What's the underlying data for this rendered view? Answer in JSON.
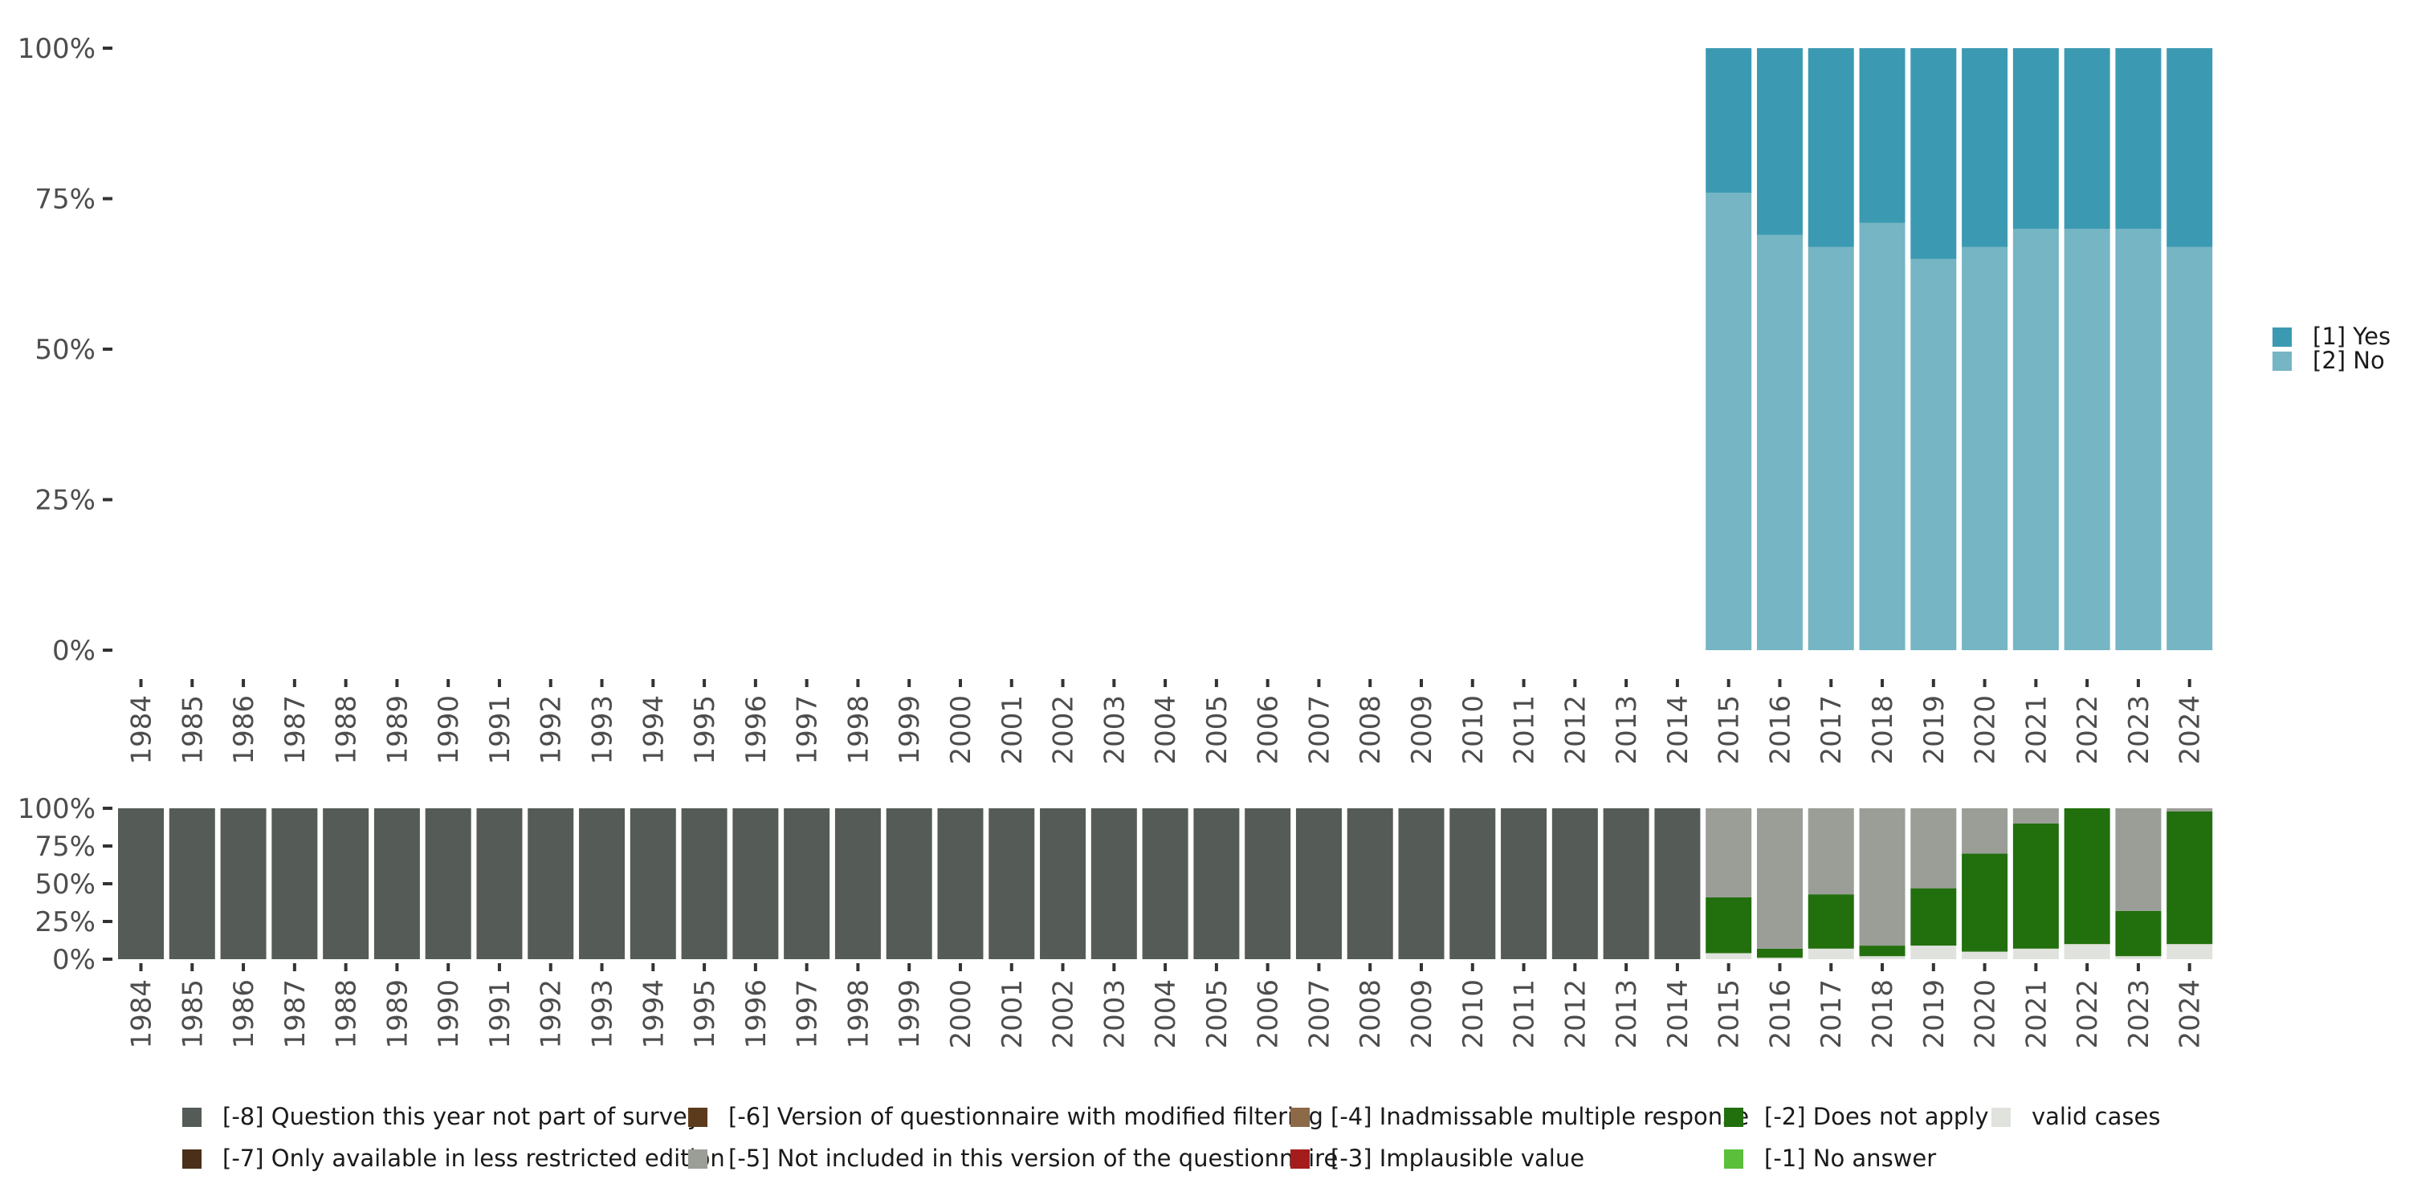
{
  "chart_data": [
    {
      "type": "bar",
      "stacked": true,
      "percent": true,
      "categories": [
        "1984",
        "1985",
        "1986",
        "1987",
        "1988",
        "1989",
        "1990",
        "1991",
        "1992",
        "1993",
        "1994",
        "1995",
        "1996",
        "1997",
        "1998",
        "1999",
        "2000",
        "2001",
        "2002",
        "2003",
        "2004",
        "2005",
        "2006",
        "2007",
        "2008",
        "2009",
        "2010",
        "2011",
        "2012",
        "2013",
        "2014",
        "2015",
        "2016",
        "2017",
        "2018",
        "2019",
        "2020",
        "2021",
        "2022",
        "2023",
        "2024"
      ],
      "y_ticks": [
        "0%",
        "25%",
        "50%",
        "75%",
        "100%"
      ],
      "ylim": [
        0,
        100
      ],
      "legend_position": "right",
      "series": [
        {
          "name": "[2] No",
          "color": "#76b5c3",
          "values": [
            null,
            null,
            null,
            null,
            null,
            null,
            null,
            null,
            null,
            null,
            null,
            null,
            null,
            null,
            null,
            null,
            null,
            null,
            null,
            null,
            null,
            null,
            null,
            null,
            null,
            null,
            null,
            null,
            null,
            null,
            null,
            76,
            69,
            67,
            71,
            65,
            67,
            70,
            70,
            70,
            67
          ]
        },
        {
          "name": "[1] Yes",
          "color": "#3b9ab2",
          "values": [
            null,
            null,
            null,
            null,
            null,
            null,
            null,
            null,
            null,
            null,
            null,
            null,
            null,
            null,
            null,
            null,
            null,
            null,
            null,
            null,
            null,
            null,
            null,
            null,
            null,
            null,
            null,
            null,
            null,
            null,
            null,
            24,
            31,
            33,
            29,
            35,
            33,
            30,
            30,
            30,
            33
          ]
        }
      ]
    },
    {
      "type": "bar",
      "stacked": true,
      "percent": true,
      "categories": [
        "1984",
        "1985",
        "1986",
        "1987",
        "1988",
        "1989",
        "1990",
        "1991",
        "1992",
        "1993",
        "1994",
        "1995",
        "1996",
        "1997",
        "1998",
        "1999",
        "2000",
        "2001",
        "2002",
        "2003",
        "2004",
        "2005",
        "2006",
        "2007",
        "2008",
        "2009",
        "2010",
        "2011",
        "2012",
        "2013",
        "2014",
        "2015",
        "2016",
        "2017",
        "2018",
        "2019",
        "2020",
        "2021",
        "2022",
        "2023",
        "2024"
      ],
      "y_ticks": [
        "0%",
        "25%",
        "50%",
        "75%",
        "100%"
      ],
      "ylim": [
        0,
        100
      ],
      "legend_position": "bottom",
      "series": [
        {
          "name": "valid cases",
          "color": "#e0e2dd",
          "values": [
            0,
            0,
            0,
            0,
            0,
            0,
            0,
            0,
            0,
            0,
            0,
            0,
            0,
            0,
            0,
            0,
            0,
            0,
            0,
            0,
            0,
            0,
            0,
            0,
            0,
            0,
            0,
            0,
            0,
            0,
            0,
            4,
            1,
            7,
            2,
            9,
            5,
            7,
            10,
            2,
            10
          ]
        },
        {
          "name": "[-1] No answer",
          "color": "#5bbf3b",
          "values": [
            0,
            0,
            0,
            0,
            0,
            0,
            0,
            0,
            0,
            0,
            0,
            0,
            0,
            0,
            0,
            0,
            0,
            0,
            0,
            0,
            0,
            0,
            0,
            0,
            0,
            0,
            0,
            0,
            0,
            0,
            0,
            0,
            0,
            0,
            0,
            0,
            0,
            0,
            0,
            0,
            0
          ]
        },
        {
          "name": "[-2] Does not apply",
          "color": "#226f0e",
          "values": [
            0,
            0,
            0,
            0,
            0,
            0,
            0,
            0,
            0,
            0,
            0,
            0,
            0,
            0,
            0,
            0,
            0,
            0,
            0,
            0,
            0,
            0,
            0,
            0,
            0,
            0,
            0,
            0,
            0,
            0,
            0,
            37,
            6,
            36,
            7,
            38,
            65,
            83,
            90,
            30,
            88
          ]
        },
        {
          "name": "[-3] Implausible value",
          "color": "#a51c1c",
          "values": [
            0,
            0,
            0,
            0,
            0,
            0,
            0,
            0,
            0,
            0,
            0,
            0,
            0,
            0,
            0,
            0,
            0,
            0,
            0,
            0,
            0,
            0,
            0,
            0,
            0,
            0,
            0,
            0,
            0,
            0,
            0,
            0,
            0,
            0,
            0,
            0,
            0,
            0,
            0,
            0,
            0
          ]
        },
        {
          "name": "[-4] Inadmissable multiple response",
          "color": "#8c6a48",
          "values": [
            0,
            0,
            0,
            0,
            0,
            0,
            0,
            0,
            0,
            0,
            0,
            0,
            0,
            0,
            0,
            0,
            0,
            0,
            0,
            0,
            0,
            0,
            0,
            0,
            0,
            0,
            0,
            0,
            0,
            0,
            0,
            0,
            0,
            0,
            0,
            0,
            0,
            0,
            0,
            0,
            0
          ]
        },
        {
          "name": "[-5] Not included in this version of the questionnaire",
          "color": "#9b9d97",
          "values": [
            0,
            0,
            0,
            0,
            0,
            0,
            0,
            0,
            0,
            0,
            0,
            0,
            0,
            0,
            0,
            0,
            0,
            0,
            0,
            0,
            0,
            0,
            0,
            0,
            0,
            0,
            0,
            0,
            0,
            0,
            0,
            59,
            93,
            57,
            91,
            53,
            30,
            10,
            0,
            68,
            2
          ]
        },
        {
          "name": "[-6] Version of questionnaire with modified filtering",
          "color": "#5c3b1c",
          "values": [
            0,
            0,
            0,
            0,
            0,
            0,
            0,
            0,
            0,
            0,
            0,
            0,
            0,
            0,
            0,
            0,
            0,
            0,
            0,
            0,
            0,
            0,
            0,
            0,
            0,
            0,
            0,
            0,
            0,
            0,
            0,
            0,
            0,
            0,
            0,
            0,
            0,
            0,
            0,
            0,
            0
          ]
        },
        {
          "name": "[-7] Only available in less restricted edition",
          "color": "#4a3018",
          "values": [
            0,
            0,
            0,
            0,
            0,
            0,
            0,
            0,
            0,
            0,
            0,
            0,
            0,
            0,
            0,
            0,
            0,
            0,
            0,
            0,
            0,
            0,
            0,
            0,
            0,
            0,
            0,
            0,
            0,
            0,
            0,
            0,
            0,
            0,
            0,
            0,
            0,
            0,
            0,
            0,
            0
          ]
        },
        {
          "name": "[-8] Question this year not part of survey",
          "color": "#555b56",
          "values": [
            100,
            100,
            100,
            100,
            100,
            100,
            100,
            100,
            100,
            100,
            100,
            100,
            100,
            100,
            100,
            100,
            100,
            100,
            100,
            100,
            100,
            100,
            100,
            100,
            100,
            100,
            100,
            100,
            100,
            100,
            100,
            0,
            0,
            0,
            0,
            0,
            0,
            0,
            0,
            0,
            0
          ]
        }
      ],
      "legend_order": [
        "[-8] Question this year not part of survey",
        "[-7] Only available in less restricted edition",
        "[-6] Version of questionnaire with modified filtering",
        "[-5] Not included in this version of the questionnaire",
        "[-4] Inadmissable multiple response",
        "[-3] Implausible value",
        "[-2] Does not apply",
        "[-1] No answer",
        "valid cases"
      ]
    }
  ]
}
